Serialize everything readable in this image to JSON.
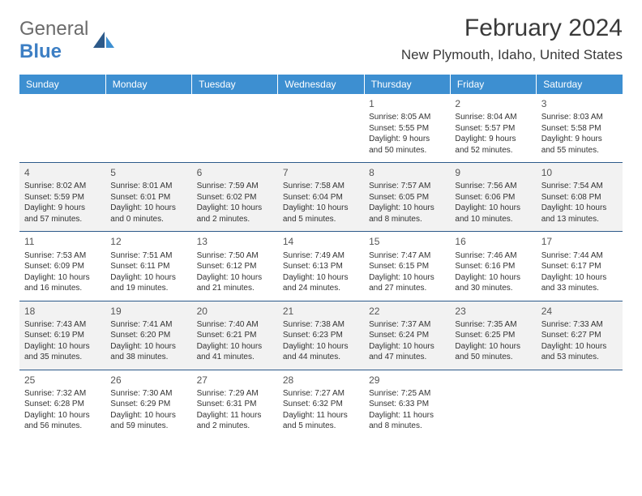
{
  "logo": {
    "t1": "General",
    "t2": "Blue"
  },
  "title": "February 2024",
  "location": "New Plymouth, Idaho, United States",
  "colors": {
    "header_bg": "#3d8fd1",
    "header_text": "#ffffff",
    "row_border": "#2d5a8a",
    "alt_row_bg": "#f2f2f2",
    "text": "#333333",
    "logo_gray": "#6b6b6b",
    "logo_blue": "#3d7fc4"
  },
  "typography": {
    "body_pt": 10,
    "daynum_pt": 12,
    "header_pt": 12,
    "title_pt": 30,
    "location_pt": 17
  },
  "columns": [
    "Sunday",
    "Monday",
    "Tuesday",
    "Wednesday",
    "Thursday",
    "Friday",
    "Saturday"
  ],
  "weeks": [
    [
      null,
      null,
      null,
      null,
      {
        "d": "1",
        "sr": "8:05 AM",
        "ss": "5:55 PM",
        "dl": "9 hours and 50 minutes."
      },
      {
        "d": "2",
        "sr": "8:04 AM",
        "ss": "5:57 PM",
        "dl": "9 hours and 52 minutes."
      },
      {
        "d": "3",
        "sr": "8:03 AM",
        "ss": "5:58 PM",
        "dl": "9 hours and 55 minutes."
      }
    ],
    [
      {
        "d": "4",
        "sr": "8:02 AM",
        "ss": "5:59 PM",
        "dl": "9 hours and 57 minutes."
      },
      {
        "d": "5",
        "sr": "8:01 AM",
        "ss": "6:01 PM",
        "dl": "10 hours and 0 minutes."
      },
      {
        "d": "6",
        "sr": "7:59 AM",
        "ss": "6:02 PM",
        "dl": "10 hours and 2 minutes."
      },
      {
        "d": "7",
        "sr": "7:58 AM",
        "ss": "6:04 PM",
        "dl": "10 hours and 5 minutes."
      },
      {
        "d": "8",
        "sr": "7:57 AM",
        "ss": "6:05 PM",
        "dl": "10 hours and 8 minutes."
      },
      {
        "d": "9",
        "sr": "7:56 AM",
        "ss": "6:06 PM",
        "dl": "10 hours and 10 minutes."
      },
      {
        "d": "10",
        "sr": "7:54 AM",
        "ss": "6:08 PM",
        "dl": "10 hours and 13 minutes."
      }
    ],
    [
      {
        "d": "11",
        "sr": "7:53 AM",
        "ss": "6:09 PM",
        "dl": "10 hours and 16 minutes."
      },
      {
        "d": "12",
        "sr": "7:51 AM",
        "ss": "6:11 PM",
        "dl": "10 hours and 19 minutes."
      },
      {
        "d": "13",
        "sr": "7:50 AM",
        "ss": "6:12 PM",
        "dl": "10 hours and 21 minutes."
      },
      {
        "d": "14",
        "sr": "7:49 AM",
        "ss": "6:13 PM",
        "dl": "10 hours and 24 minutes."
      },
      {
        "d": "15",
        "sr": "7:47 AM",
        "ss": "6:15 PM",
        "dl": "10 hours and 27 minutes."
      },
      {
        "d": "16",
        "sr": "7:46 AM",
        "ss": "6:16 PM",
        "dl": "10 hours and 30 minutes."
      },
      {
        "d": "17",
        "sr": "7:44 AM",
        "ss": "6:17 PM",
        "dl": "10 hours and 33 minutes."
      }
    ],
    [
      {
        "d": "18",
        "sr": "7:43 AM",
        "ss": "6:19 PM",
        "dl": "10 hours and 35 minutes."
      },
      {
        "d": "19",
        "sr": "7:41 AM",
        "ss": "6:20 PM",
        "dl": "10 hours and 38 minutes."
      },
      {
        "d": "20",
        "sr": "7:40 AM",
        "ss": "6:21 PM",
        "dl": "10 hours and 41 minutes."
      },
      {
        "d": "21",
        "sr": "7:38 AM",
        "ss": "6:23 PM",
        "dl": "10 hours and 44 minutes."
      },
      {
        "d": "22",
        "sr": "7:37 AM",
        "ss": "6:24 PM",
        "dl": "10 hours and 47 minutes."
      },
      {
        "d": "23",
        "sr": "7:35 AM",
        "ss": "6:25 PM",
        "dl": "10 hours and 50 minutes."
      },
      {
        "d": "24",
        "sr": "7:33 AM",
        "ss": "6:27 PM",
        "dl": "10 hours and 53 minutes."
      }
    ],
    [
      {
        "d": "25",
        "sr": "7:32 AM",
        "ss": "6:28 PM",
        "dl": "10 hours and 56 minutes."
      },
      {
        "d": "26",
        "sr": "7:30 AM",
        "ss": "6:29 PM",
        "dl": "10 hours and 59 minutes."
      },
      {
        "d": "27",
        "sr": "7:29 AM",
        "ss": "6:31 PM",
        "dl": "11 hours and 2 minutes."
      },
      {
        "d": "28",
        "sr": "7:27 AM",
        "ss": "6:32 PM",
        "dl": "11 hours and 5 minutes."
      },
      {
        "d": "29",
        "sr": "7:25 AM",
        "ss": "6:33 PM",
        "dl": "11 hours and 8 minutes."
      },
      null,
      null
    ]
  ],
  "labels": {
    "sunrise": "Sunrise:",
    "sunset": "Sunset:",
    "daylight": "Daylight:"
  }
}
